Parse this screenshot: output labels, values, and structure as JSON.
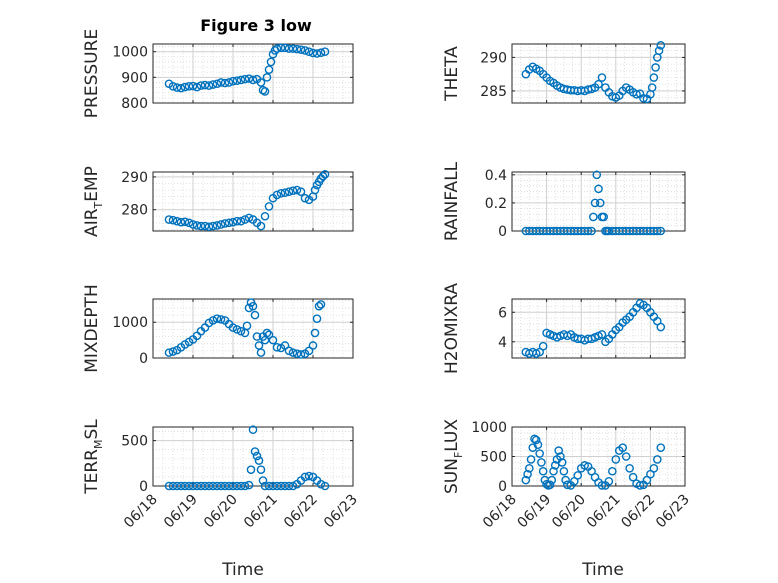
{
  "figure": {
    "title": "Figure 3 low",
    "marker_color": "#0072BD",
    "grid_color": "#d9d9d9"
  },
  "chart_data": [
    {
      "type": "scatter",
      "title": "Figure 3 low",
      "ylabel": "PRESSURE",
      "ylim": [
        800,
        1030
      ],
      "yticks": [
        800,
        900,
        1000
      ],
      "x_dates": [
        "06/18",
        "06/19",
        "06/20",
        "06/21",
        "06/22",
        "06/23"
      ],
      "grid": true,
      "x": [
        18.4,
        18.5,
        18.6,
        18.7,
        18.8,
        18.9,
        19.0,
        19.1,
        19.2,
        19.3,
        19.4,
        19.5,
        19.6,
        19.7,
        19.8,
        19.9,
        20.0,
        20.1,
        20.2,
        20.3,
        20.4,
        20.5,
        20.6,
        20.7,
        20.75,
        20.8,
        20.85,
        20.9,
        20.95,
        21.0,
        21.05,
        21.1,
        21.2,
        21.3,
        21.4,
        21.5,
        21.6,
        21.7,
        21.8,
        21.9,
        22.0,
        22.1,
        22.2,
        22.3
      ],
      "y": [
        875,
        865,
        860,
        858,
        862,
        865,
        866,
        862,
        868,
        870,
        868,
        872,
        875,
        880,
        878,
        880,
        885,
        887,
        890,
        893,
        895,
        890,
        893,
        880,
        850,
        845,
        900,
        930,
        960,
        990,
        1005,
        1012,
        1015,
        1015,
        1012,
        1012,
        1010,
        1008,
        1005,
        1000,
        995,
        993,
        996,
        1000
      ]
    },
    {
      "type": "scatter",
      "ylabel": "THETA",
      "ylim": [
        283.2,
        292
      ],
      "yticks": [
        285,
        290
      ],
      "grid": true,
      "x": [
        18.4,
        18.5,
        18.6,
        18.7,
        18.8,
        18.9,
        19.0,
        19.1,
        19.2,
        19.3,
        19.4,
        19.5,
        19.6,
        19.7,
        19.8,
        19.9,
        20.0,
        20.1,
        20.2,
        20.3,
        20.4,
        20.5,
        20.6,
        20.7,
        20.8,
        20.9,
        21.0,
        21.1,
        21.2,
        21.3,
        21.4,
        21.5,
        21.6,
        21.7,
        21.8,
        21.9,
        22.0,
        22.05,
        22.1,
        22.15,
        22.2,
        22.25,
        22.3
      ],
      "y": [
        287.5,
        288.2,
        288.6,
        288.3,
        288.0,
        287.5,
        287.0,
        286.5,
        286.2,
        285.8,
        285.5,
        285.3,
        285.2,
        285.1,
        285.1,
        285.0,
        285.1,
        285.0,
        285.2,
        285.3,
        285.5,
        286.0,
        287.0,
        285.5,
        284.8,
        284.2,
        284.0,
        284.3,
        285.0,
        285.5,
        285.2,
        284.8,
        284.5,
        284.6,
        283.9,
        283.8,
        284.5,
        285.5,
        287.0,
        288.5,
        290.0,
        291.0,
        291.8
      ]
    },
    {
      "type": "scatter",
      "ylabel": "AIR_TEMP",
      "ylabel_main": "AIR",
      "ylabel_sub": "T",
      "ylabel_rest": "EMP",
      "ylim": [
        273.5,
        291.5
      ],
      "yticks": [
        280,
        290
      ],
      "grid": true,
      "x": [
        18.4,
        18.5,
        18.6,
        18.7,
        18.8,
        18.9,
        19.0,
        19.1,
        19.2,
        19.3,
        19.4,
        19.5,
        19.6,
        19.7,
        19.8,
        19.9,
        20.0,
        20.1,
        20.2,
        20.3,
        20.4,
        20.5,
        20.6,
        20.7,
        20.8,
        20.9,
        21.0,
        21.1,
        21.2,
        21.3,
        21.4,
        21.5,
        21.6,
        21.7,
        21.8,
        21.9,
        22.0,
        22.05,
        22.1,
        22.15,
        22.2,
        22.25,
        22.3
      ],
      "y": [
        277,
        276.8,
        276.5,
        276.2,
        276.3,
        276.0,
        275.5,
        275.2,
        275.0,
        275.0,
        274.8,
        275.0,
        275.2,
        275.5,
        275.8,
        276.0,
        276.2,
        276.5,
        276.5,
        277.0,
        277.5,
        277.0,
        276.0,
        275.0,
        278.0,
        281.0,
        283.5,
        284.5,
        285.0,
        285.2,
        285.5,
        285.8,
        286.0,
        285.5,
        283.5,
        283.0,
        284.0,
        286.0,
        287.5,
        288.5,
        289.5,
        290.2,
        290.8
      ]
    },
    {
      "type": "scatter",
      "ylabel": "RAINFALL",
      "ylim": [
        0,
        0.42
      ],
      "yticks": [
        0,
        0.2,
        0.4
      ],
      "grid": true,
      "x": [
        18.4,
        18.5,
        18.6,
        18.7,
        18.8,
        18.9,
        19.0,
        19.1,
        19.2,
        19.3,
        19.4,
        19.5,
        19.6,
        19.7,
        19.8,
        19.9,
        20.0,
        20.1,
        20.2,
        20.3,
        20.35,
        20.4,
        20.45,
        20.5,
        20.55,
        20.6,
        20.65,
        20.7,
        20.75,
        20.8,
        20.9,
        21.0,
        21.1,
        21.2,
        21.3,
        21.4,
        21.5,
        21.6,
        21.7,
        21.8,
        21.9,
        22.0,
        22.1,
        22.2,
        22.3
      ],
      "y": [
        0,
        0,
        0,
        0,
        0,
        0,
        0,
        0,
        0,
        0,
        0,
        0,
        0,
        0,
        0,
        0,
        0,
        0,
        0,
        0,
        0.1,
        0.2,
        0.4,
        0.3,
        0.2,
        0.1,
        0.1,
        0,
        0,
        0,
        0,
        0,
        0,
        0,
        0,
        0,
        0,
        0,
        0,
        0,
        0,
        0,
        0,
        0,
        0
      ]
    },
    {
      "type": "scatter",
      "ylabel": "MIXDEPTH",
      "ylim": [
        0,
        1650
      ],
      "yticks": [
        0,
        1000
      ],
      "grid": true,
      "x": [
        18.4,
        18.5,
        18.6,
        18.7,
        18.8,
        18.9,
        19.0,
        19.1,
        19.2,
        19.3,
        19.4,
        19.5,
        19.6,
        19.7,
        19.8,
        19.9,
        20.0,
        20.1,
        20.2,
        20.3,
        20.35,
        20.4,
        20.45,
        20.5,
        20.55,
        20.6,
        20.65,
        20.7,
        20.75,
        20.8,
        20.85,
        20.9,
        21.0,
        21.1,
        21.2,
        21.3,
        21.4,
        21.5,
        21.6,
        21.7,
        21.8,
        21.9,
        22.0,
        22.05,
        22.1,
        22.15,
        22.2
      ],
      "y": [
        150,
        180,
        220,
        300,
        380,
        450,
        520,
        620,
        750,
        850,
        980,
        1050,
        1100,
        1080,
        1050,
        950,
        850,
        800,
        750,
        700,
        900,
        1400,
        1550,
        1450,
        1200,
        600,
        350,
        150,
        600,
        500,
        700,
        650,
        500,
        300,
        280,
        350,
        200,
        150,
        120,
        100,
        120,
        200,
        350,
        700,
        1100,
        1450,
        1500
      ]
    },
    {
      "type": "scatter",
      "ylabel": "H2OMIXRA",
      "ylim": [
        2.9,
        6.9
      ],
      "yticks": [
        4,
        6
      ],
      "grid": true,
      "x": [
        18.4,
        18.5,
        18.6,
        18.7,
        18.8,
        18.9,
        19.0,
        19.1,
        19.2,
        19.3,
        19.4,
        19.5,
        19.6,
        19.7,
        19.8,
        19.9,
        20.0,
        20.1,
        20.2,
        20.3,
        20.4,
        20.5,
        20.6,
        20.7,
        20.8,
        20.9,
        21.0,
        21.1,
        21.2,
        21.3,
        21.4,
        21.5,
        21.6,
        21.7,
        21.8,
        21.9,
        22.0,
        22.1,
        22.2,
        22.3
      ],
      "y": [
        3.3,
        3.2,
        3.3,
        3.2,
        3.3,
        3.7,
        4.6,
        4.5,
        4.4,
        4.3,
        4.4,
        4.5,
        4.4,
        4.5,
        4.3,
        4.2,
        4.2,
        4.1,
        4.2,
        4.2,
        4.3,
        4.4,
        4.5,
        4.0,
        4.2,
        4.5,
        4.8,
        5.0,
        5.3,
        5.5,
        5.7,
        6.0,
        6.3,
        6.6,
        6.5,
        6.3,
        6.0,
        5.7,
        5.4,
        5.0
      ]
    },
    {
      "type": "scatter",
      "ylabel": "TERR_MSL",
      "ylabel_main": "TERR",
      "ylabel_sub": "M",
      "ylabel_rest": "SL",
      "ylim": [
        0,
        650
      ],
      "yticks": [
        0,
        500
      ],
      "grid": true,
      "x": [
        18.4,
        18.5,
        18.6,
        18.7,
        18.8,
        18.9,
        19.0,
        19.1,
        19.2,
        19.3,
        19.4,
        19.5,
        19.6,
        19.7,
        19.8,
        19.9,
        20.0,
        20.1,
        20.2,
        20.3,
        20.4,
        20.45,
        20.5,
        20.55,
        20.6,
        20.65,
        20.7,
        20.75,
        20.8,
        20.9,
        21.0,
        21.1,
        21.2,
        21.3,
        21.4,
        21.5,
        21.6,
        21.7,
        21.8,
        21.9,
        22.0,
        22.1,
        22.2,
        22.3
      ],
      "y": [
        0,
        0,
        0,
        0,
        0,
        0,
        0,
        0,
        0,
        0,
        0,
        0,
        0,
        0,
        0,
        0,
        0,
        0,
        0,
        0,
        10,
        180,
        620,
        380,
        330,
        280,
        180,
        60,
        0,
        0,
        0,
        0,
        0,
        0,
        0,
        0,
        20,
        60,
        100,
        110,
        100,
        60,
        20,
        0
      ]
    },
    {
      "type": "scatter",
      "ylabel": "SUN_FLUX",
      "ylabel_main": "SUN",
      "ylabel_sub": "F",
      "ylabel_rest": "LUX",
      "ylim": [
        0,
        1000
      ],
      "yticks": [
        0,
        500,
        1000
      ],
      "grid": true,
      "x": [
        18.4,
        18.45,
        18.5,
        18.55,
        18.6,
        18.65,
        18.7,
        18.75,
        18.8,
        18.85,
        18.9,
        18.95,
        19.0,
        19.05,
        19.1,
        19.15,
        19.2,
        19.25,
        19.3,
        19.35,
        19.4,
        19.45,
        19.5,
        19.55,
        19.6,
        19.7,
        19.8,
        19.9,
        20.0,
        20.1,
        20.2,
        20.3,
        20.4,
        20.5,
        20.6,
        20.7,
        20.8,
        20.9,
        21.0,
        21.1,
        21.2,
        21.3,
        21.4,
        21.5,
        21.6,
        21.7,
        21.8,
        21.9,
        22.0,
        22.1,
        22.2,
        22.3
      ],
      "y": [
        100,
        200,
        300,
        450,
        650,
        800,
        780,
        700,
        550,
        400,
        250,
        100,
        30,
        10,
        20,
        100,
        250,
        350,
        450,
        600,
        500,
        400,
        250,
        100,
        20,
        10,
        80,
        180,
        300,
        350,
        330,
        250,
        150,
        60,
        10,
        10,
        80,
        250,
        450,
        600,
        650,
        500,
        300,
        150,
        40,
        10,
        20,
        100,
        200,
        300,
        450,
        650
      ]
    }
  ],
  "shared": {
    "xlabel": "Time",
    "x_ticklabels": [
      "06/18",
      "06/19",
      "06/20",
      "06/21",
      "06/22",
      "06/23"
    ]
  }
}
